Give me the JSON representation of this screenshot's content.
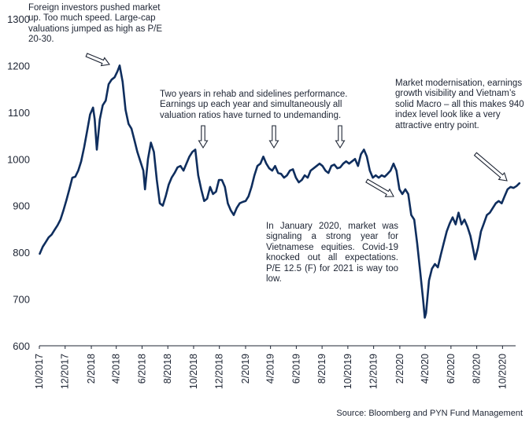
{
  "chart_data": {
    "type": "line",
    "title": "",
    "xlabel": "",
    "ylabel": "",
    "ylim": [
      600,
      1300
    ],
    "yticks": [
      600,
      700,
      800,
      900,
      1000,
      1100,
      1200,
      1300
    ],
    "x_range": [
      "2017-10",
      "2020-11"
    ],
    "xticks": [
      "10/2017",
      "12/2017",
      "2/2018",
      "4/2018",
      "6/2018",
      "8/2018",
      "10/2018",
      "12/2018",
      "2/2019",
      "4/2019",
      "6/2019",
      "8/2019",
      "10/2019",
      "12/2019",
      "2/2020",
      "4/2020",
      "6/2020",
      "8/2020",
      "10/2020"
    ],
    "grid": false,
    "line_color": "#0f2e5e",
    "series": [
      {
        "points": [
          [
            "2017-10-02",
            797
          ],
          [
            "2017-10-09",
            812
          ],
          [
            "2017-10-16",
            822
          ],
          [
            "2017-10-23",
            832
          ],
          [
            "2017-10-30",
            838
          ],
          [
            "2017-11-06",
            848
          ],
          [
            "2017-11-13",
            858
          ],
          [
            "2017-11-20",
            870
          ],
          [
            "2017-11-27",
            890
          ],
          [
            "2017-12-04",
            912
          ],
          [
            "2017-12-11",
            935
          ],
          [
            "2017-12-18",
            960
          ],
          [
            "2017-12-25",
            962
          ],
          [
            "2018-01-01",
            975
          ],
          [
            "2018-01-08",
            995
          ],
          [
            "2018-01-15",
            1025
          ],
          [
            "2018-01-22",
            1060
          ],
          [
            "2018-01-29",
            1095
          ],
          [
            "2018-02-05",
            1110
          ],
          [
            "2018-02-09",
            1085
          ],
          [
            "2018-02-14",
            1020
          ],
          [
            "2018-02-21",
            1085
          ],
          [
            "2018-02-28",
            1115
          ],
          [
            "2018-03-07",
            1125
          ],
          [
            "2018-03-14",
            1160
          ],
          [
            "2018-03-21",
            1170
          ],
          [
            "2018-03-28",
            1175
          ],
          [
            "2018-04-04",
            1188
          ],
          [
            "2018-04-09",
            1200
          ],
          [
            "2018-04-16",
            1165
          ],
          [
            "2018-04-23",
            1105
          ],
          [
            "2018-04-30",
            1075
          ],
          [
            "2018-05-07",
            1065
          ],
          [
            "2018-05-14",
            1040
          ],
          [
            "2018-05-21",
            1015
          ],
          [
            "2018-05-28",
            995
          ],
          [
            "2018-06-04",
            975
          ],
          [
            "2018-06-08",
            935
          ],
          [
            "2018-06-15",
            1000
          ],
          [
            "2018-06-22",
            1035
          ],
          [
            "2018-06-29",
            1015
          ],
          [
            "2018-07-06",
            955
          ],
          [
            "2018-07-13",
            905
          ],
          [
            "2018-07-20",
            900
          ],
          [
            "2018-07-27",
            920
          ],
          [
            "2018-08-03",
            945
          ],
          [
            "2018-08-10",
            960
          ],
          [
            "2018-08-17",
            970
          ],
          [
            "2018-08-24",
            982
          ],
          [
            "2018-08-31",
            985
          ],
          [
            "2018-09-07",
            975
          ],
          [
            "2018-09-14",
            990
          ],
          [
            "2018-09-21",
            1005
          ],
          [
            "2018-09-28",
            1015
          ],
          [
            "2018-10-05",
            1020
          ],
          [
            "2018-10-12",
            965
          ],
          [
            "2018-10-19",
            935
          ],
          [
            "2018-10-26",
            910
          ],
          [
            "2018-11-02",
            915
          ],
          [
            "2018-11-09",
            940
          ],
          [
            "2018-11-16",
            925
          ],
          [
            "2018-11-23",
            930
          ],
          [
            "2018-11-30",
            955
          ],
          [
            "2018-12-07",
            955
          ],
          [
            "2018-12-14",
            940
          ],
          [
            "2018-12-21",
            905
          ],
          [
            "2018-12-28",
            890
          ],
          [
            "2019-01-04",
            880
          ],
          [
            "2019-01-11",
            895
          ],
          [
            "2019-01-18",
            905
          ],
          [
            "2019-01-25",
            908
          ],
          [
            "2019-02-01",
            910
          ],
          [
            "2019-02-08",
            920
          ],
          [
            "2019-02-15",
            940
          ],
          [
            "2019-02-22",
            965
          ],
          [
            "2019-03-01",
            985
          ],
          [
            "2019-03-08",
            990
          ],
          [
            "2019-03-15",
            1005
          ],
          [
            "2019-03-22",
            990
          ],
          [
            "2019-03-29",
            980
          ],
          [
            "2019-04-05",
            975
          ],
          [
            "2019-04-12",
            985
          ],
          [
            "2019-04-19",
            970
          ],
          [
            "2019-04-26",
            968
          ],
          [
            "2019-05-03",
            960
          ],
          [
            "2019-05-10",
            965
          ],
          [
            "2019-05-17",
            975
          ],
          [
            "2019-05-24",
            978
          ],
          [
            "2019-05-31",
            960
          ],
          [
            "2019-06-07",
            950
          ],
          [
            "2019-06-14",
            955
          ],
          [
            "2019-06-21",
            965
          ],
          [
            "2019-06-28",
            960
          ],
          [
            "2019-07-05",
            975
          ],
          [
            "2019-07-12",
            980
          ],
          [
            "2019-07-19",
            985
          ],
          [
            "2019-07-26",
            990
          ],
          [
            "2019-08-02",
            985
          ],
          [
            "2019-08-09",
            975
          ],
          [
            "2019-08-16",
            970
          ],
          [
            "2019-08-23",
            985
          ],
          [
            "2019-08-30",
            988
          ],
          [
            "2019-09-06",
            980
          ],
          [
            "2019-09-13",
            982
          ],
          [
            "2019-09-20",
            990
          ],
          [
            "2019-09-27",
            995
          ],
          [
            "2019-10-04",
            990
          ],
          [
            "2019-10-11",
            995
          ],
          [
            "2019-10-18",
            1000
          ],
          [
            "2019-10-25",
            985
          ],
          [
            "2019-11-01",
            1010
          ],
          [
            "2019-11-08",
            1020
          ],
          [
            "2019-11-15",
            1005
          ],
          [
            "2019-11-22",
            975
          ],
          [
            "2019-11-29",
            960
          ],
          [
            "2019-12-06",
            965
          ],
          [
            "2019-12-13",
            960
          ],
          [
            "2019-12-20",
            965
          ],
          [
            "2019-12-27",
            962
          ],
          [
            "2020-01-03",
            968
          ],
          [
            "2020-01-10",
            975
          ],
          [
            "2020-01-17",
            990
          ],
          [
            "2020-01-24",
            975
          ],
          [
            "2020-01-31",
            935
          ],
          [
            "2020-02-07",
            925
          ],
          [
            "2020-02-14",
            935
          ],
          [
            "2020-02-21",
            925
          ],
          [
            "2020-02-28",
            880
          ],
          [
            "2020-03-06",
            870
          ],
          [
            "2020-03-13",
            820
          ],
          [
            "2020-03-20",
            760
          ],
          [
            "2020-03-27",
            700
          ],
          [
            "2020-03-31",
            660
          ],
          [
            "2020-04-03",
            670
          ],
          [
            "2020-04-10",
            740
          ],
          [
            "2020-04-17",
            765
          ],
          [
            "2020-04-24",
            775
          ],
          [
            "2020-05-01",
            768
          ],
          [
            "2020-05-08",
            795
          ],
          [
            "2020-05-15",
            820
          ],
          [
            "2020-05-22",
            845
          ],
          [
            "2020-05-29",
            862
          ],
          [
            "2020-06-05",
            875
          ],
          [
            "2020-06-12",
            860
          ],
          [
            "2020-06-19",
            885
          ],
          [
            "2020-06-26",
            860
          ],
          [
            "2020-07-03",
            870
          ],
          [
            "2020-07-10",
            855
          ],
          [
            "2020-07-17",
            835
          ],
          [
            "2020-07-24",
            805
          ],
          [
            "2020-07-28",
            785
          ],
          [
            "2020-08-04",
            810
          ],
          [
            "2020-08-11",
            845
          ],
          [
            "2020-08-18",
            862
          ],
          [
            "2020-08-25",
            880
          ],
          [
            "2020-09-01",
            885
          ],
          [
            "2020-09-08",
            895
          ],
          [
            "2020-09-15",
            905
          ],
          [
            "2020-09-22",
            910
          ],
          [
            "2020-09-29",
            905
          ],
          [
            "2020-10-06",
            920
          ],
          [
            "2020-10-13",
            935
          ],
          [
            "2020-10-20",
            940
          ],
          [
            "2020-10-27",
            938
          ],
          [
            "2020-11-03",
            942
          ],
          [
            "2020-11-10",
            948
          ]
        ]
      }
    ],
    "annotations": [
      {
        "id": "foreign",
        "text": "Foreign investors pushed market up. Too much speed. Large-cap valuations jumped as high as P/E 20-30."
      },
      {
        "id": "rehab",
        "text": "Two years in rehab and sidelines performance. Earnings up each year and simultaneously all valuation ratios have turned to undemanding."
      },
      {
        "id": "modern",
        "text": "Market modernisation, earnings growth visibility and Vietnam’s solid Macro – all this makes 940 index level  look like a very attractive entry point."
      },
      {
        "id": "jan2020",
        "text": "In January 2020, market was signaling a strong year for Vietnamese equities. Covid-19 knocked out all expectations. P/E 12.5 (F) for 2021 is way too low."
      }
    ],
    "source": "Source: Bloomberg and PYN Fund Management"
  }
}
